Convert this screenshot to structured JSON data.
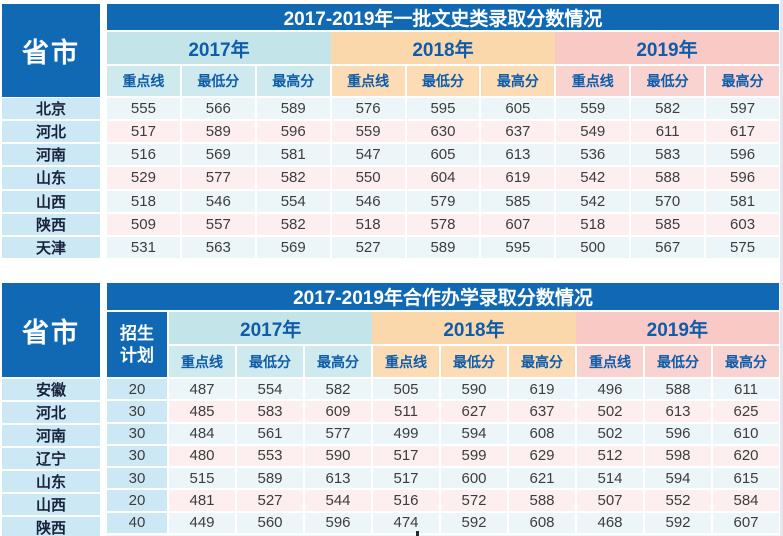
{
  "colors": {
    "primary_blue": "#1169b4",
    "header_text_blue": "#0f5caa",
    "year_2017_bg": "#c3e5e9",
    "year_2018_bg": "#fbd8ab",
    "year_2019_bg": "#f8c9c5",
    "province_cell_bg": "#cde8f5",
    "row_blue_bg": "#ecf6f9",
    "row_pink_bg": "#fdeff0"
  },
  "tables": [
    {
      "title": "2017-2019年一批文史类录取分数情况",
      "corner_label": "省市",
      "years": [
        "2017年",
        "2018年",
        "2019年"
      ],
      "sub_headers": [
        "重点线",
        "最低分",
        "最高分"
      ],
      "rows": [
        {
          "province": "北京",
          "scores": [
            "555",
            "566",
            "589",
            "576",
            "595",
            "605",
            "559",
            "582",
            "597"
          ]
        },
        {
          "province": "河北",
          "scores": [
            "517",
            "589",
            "596",
            "559",
            "630",
            "637",
            "549",
            "611",
            "617"
          ]
        },
        {
          "province": "河南",
          "scores": [
            "516",
            "569",
            "581",
            "547",
            "605",
            "613",
            "536",
            "583",
            "596"
          ]
        },
        {
          "province": "山东",
          "scores": [
            "529",
            "577",
            "582",
            "550",
            "604",
            "619",
            "542",
            "588",
            "596"
          ]
        },
        {
          "province": "山西",
          "scores": [
            "518",
            "546",
            "554",
            "546",
            "579",
            "585",
            "542",
            "570",
            "581"
          ]
        },
        {
          "province": "陕西",
          "scores": [
            "509",
            "557",
            "582",
            "518",
            "578",
            "607",
            "518",
            "585",
            "603"
          ]
        },
        {
          "province": "天津",
          "scores": [
            "531",
            "563",
            "569",
            "527",
            "589",
            "595",
            "500",
            "567",
            "575"
          ]
        }
      ]
    },
    {
      "title": "2017-2019年合作办学录取分数情况",
      "corner_label": "省市",
      "plan_header": "招生\n计划",
      "years": [
        "2017年",
        "2018年",
        "2019年"
      ],
      "sub_headers": [
        "重点线",
        "最低分",
        "最高分"
      ],
      "rows": [
        {
          "province": "安徽",
          "plan": "20",
          "scores": [
            "487",
            "554",
            "582",
            "505",
            "590",
            "619",
            "496",
            "588",
            "611"
          ]
        },
        {
          "province": "河北",
          "plan": "30",
          "scores": [
            "485",
            "583",
            "609",
            "511",
            "627",
            "637",
            "502",
            "613",
            "625"
          ]
        },
        {
          "province": "河南",
          "plan": "30",
          "scores": [
            "484",
            "561",
            "577",
            "499",
            "594",
            "608",
            "502",
            "596",
            "610"
          ]
        },
        {
          "province": "辽宁",
          "plan": "30",
          "scores": [
            "480",
            "553",
            "590",
            "517",
            "599",
            "629",
            "512",
            "598",
            "620"
          ]
        },
        {
          "province": "山东",
          "plan": "30",
          "scores": [
            "515",
            "589",
            "613",
            "517",
            "600",
            "621",
            "514",
            "594",
            "615"
          ]
        },
        {
          "province": "山西",
          "plan": "20",
          "scores": [
            "481",
            "527",
            "544",
            "516",
            "572",
            "588",
            "507",
            "552",
            "584"
          ]
        },
        {
          "province": "陕西",
          "plan": "40",
          "scores": [
            "449",
            "560",
            "596",
            "474",
            "592",
            "608",
            "468",
            "592",
            "607"
          ]
        }
      ]
    }
  ]
}
